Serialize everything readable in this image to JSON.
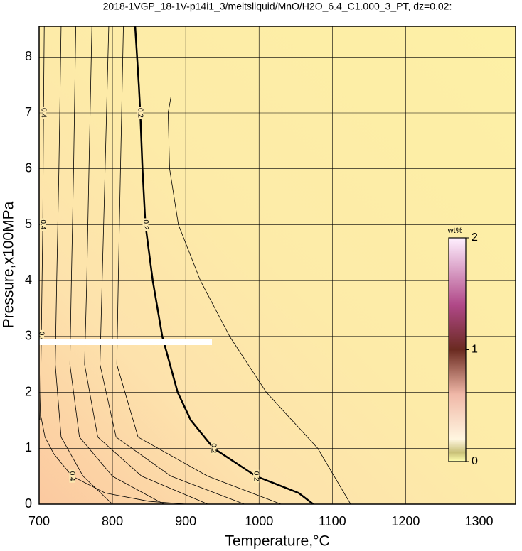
{
  "chart_data": {
    "type": "contour",
    "title": "2018-1VGP_18-1V-p14i1_3/meltsliquid/MnO/H2O_6.4_C1.000_3_PT, dz=0.02:",
    "x_label": "Temperature,°C",
    "y_label": "Pressure,x100MPa",
    "xlim": [
      700,
      1350
    ],
    "ylim": [
      0,
      8.55
    ],
    "xticks": [
      700,
      800,
      900,
      1000,
      1100,
      1200,
      1300
    ],
    "yticks": [
      0,
      1,
      2,
      3,
      4,
      5,
      6,
      7,
      8
    ],
    "grid": true,
    "colorbar": {
      "label": "wt%",
      "lim": [
        0,
        2
      ],
      "ticks": [
        0,
        1,
        2
      ]
    },
    "contours": [
      {
        "level": 0.2,
        "thick": true,
        "x": [
          831,
          836,
          838,
          841,
          845,
          855,
          868,
          889,
          907,
          938,
          996,
          1054,
          1074
        ],
        "y": [
          8.55,
          7.5,
          7,
          6,
          5,
          4,
          3,
          2,
          1.5,
          1,
          0.5,
          0.2,
          0
        ]
      },
      {
        "level": 0.4,
        "thick": false,
        "x": [
          707,
          706,
          705,
          704,
          703,
          702,
          701
        ],
        "y": [
          8.55,
          7,
          5,
          4,
          3,
          2,
          1.5
        ]
      },
      {
        "level": 0.4,
        "thick": false,
        "x": [
          702,
          708,
          720,
          745,
          790,
          850,
          900
        ],
        "y": [
          1.6,
          1.2,
          0.9,
          0.5,
          0.2,
          0.05,
          0
        ]
      },
      {
        "thick": false,
        "x": [
          730,
          727,
          724,
          722,
          730,
          760,
          800
        ],
        "y": [
          8.55,
          6,
          4,
          2.5,
          1.2,
          0.5,
          0
        ]
      },
      {
        "thick": false,
        "x": [
          750,
          747,
          744,
          742,
          755,
          800,
          870
        ],
        "y": [
          8.55,
          6,
          4,
          2.5,
          1.2,
          0.5,
          0
        ]
      },
      {
        "thick": false,
        "x": [
          772,
          768,
          765,
          762,
          780,
          840,
          930
        ],
        "y": [
          8.55,
          6,
          4,
          2.5,
          1.2,
          0.5,
          0
        ]
      },
      {
        "thick": false,
        "x": [
          795,
          790,
          786,
          783,
          805,
          880,
          980
        ],
        "y": [
          8.55,
          6,
          4,
          2.5,
          1.2,
          0.5,
          0
        ]
      },
      {
        "thick": false,
        "x": [
          815,
          811,
          808,
          806,
          835,
          930,
          1030
        ],
        "y": [
          8.55,
          6,
          4,
          2.5,
          1.2,
          0.5,
          0
        ]
      },
      {
        "thick": false,
        "x": [
          880,
          876,
          878,
          890,
          920,
          960,
          1010,
          1080,
          1125
        ],
        "y": [
          7.3,
          7,
          6,
          5,
          4,
          3,
          2,
          1,
          0
        ]
      }
    ]
  }
}
